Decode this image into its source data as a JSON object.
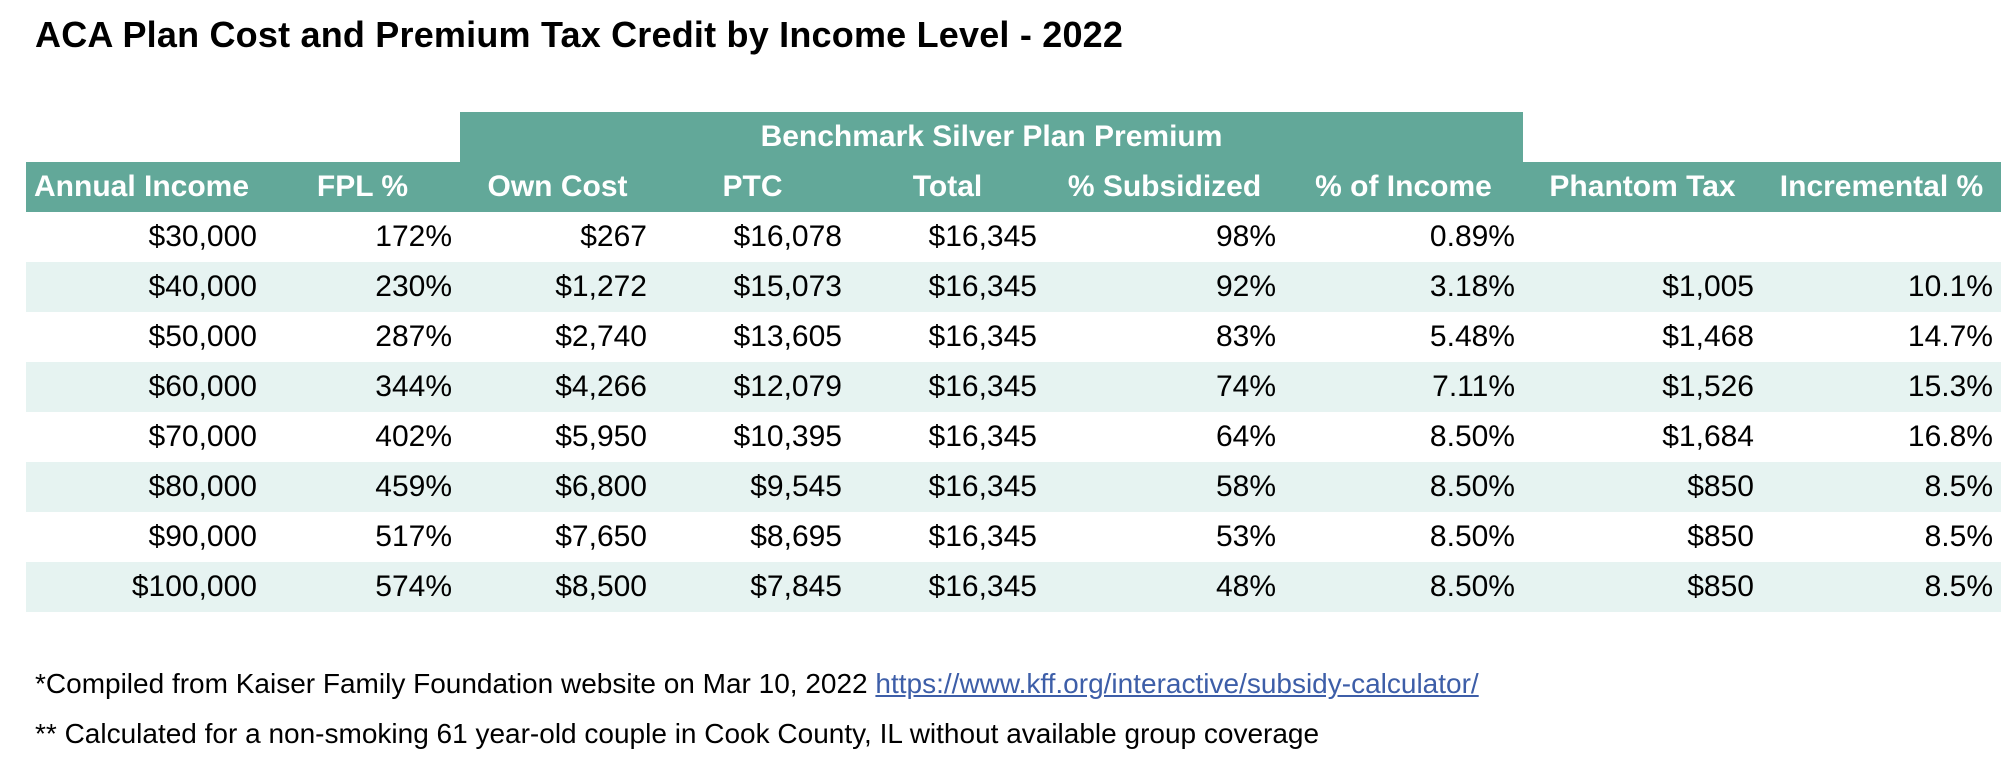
{
  "title": "ACA Plan Cost and Premium Tax Credit by Income Level - 2022",
  "group_header": "Benchmark Silver Plan Premium",
  "columns": [
    "Annual Income",
    "FPL %",
    "Own Cost",
    "PTC",
    "Total",
    "% Subsidized",
    "% of Income",
    "Phantom Tax",
    "Incremental %"
  ],
  "rows": [
    [
      "$30,000",
      "172%",
      "$267",
      "$16,078",
      "$16,345",
      "98%",
      "0.89%",
      "",
      ""
    ],
    [
      "$40,000",
      "230%",
      "$1,272",
      "$15,073",
      "$16,345",
      "92%",
      "3.18%",
      "$1,005",
      "10.1%"
    ],
    [
      "$50,000",
      "287%",
      "$2,740",
      "$13,605",
      "$16,345",
      "83%",
      "5.48%",
      "$1,468",
      "14.7%"
    ],
    [
      "$60,000",
      "344%",
      "$4,266",
      "$12,079",
      "$16,345",
      "74%",
      "7.11%",
      "$1,526",
      "15.3%"
    ],
    [
      "$70,000",
      "402%",
      "$5,950",
      "$10,395",
      "$16,345",
      "64%",
      "8.50%",
      "$1,684",
      "16.8%"
    ],
    [
      "$80,000",
      "459%",
      "$6,800",
      "$9,545",
      "$16,345",
      "58%",
      "8.50%",
      "$850",
      "8.5%"
    ],
    [
      "$90,000",
      "517%",
      "$7,650",
      "$8,695",
      "$16,345",
      "53%",
      "8.50%",
      "$850",
      "8.5%"
    ],
    [
      "$100,000",
      "574%",
      "$8,500",
      "$7,845",
      "$16,345",
      "48%",
      "8.50%",
      "$850",
      "8.5%"
    ]
  ],
  "footnotes": {
    "note1_text": "*Compiled from Kaiser Family Foundation website on Mar 10, 2022",
    "note1_link": "https://www.kff.org/interactive/subsidy-calculator/",
    "note2_text": "** Calculated for a non-smoking 61 year-old couple in Cook County, IL without available group coverage"
  },
  "colors": {
    "header_bg": "#62a899",
    "header_text": "#ffffff",
    "alt_row_bg": "#e6f3f1",
    "link": "#3d5ea8"
  }
}
